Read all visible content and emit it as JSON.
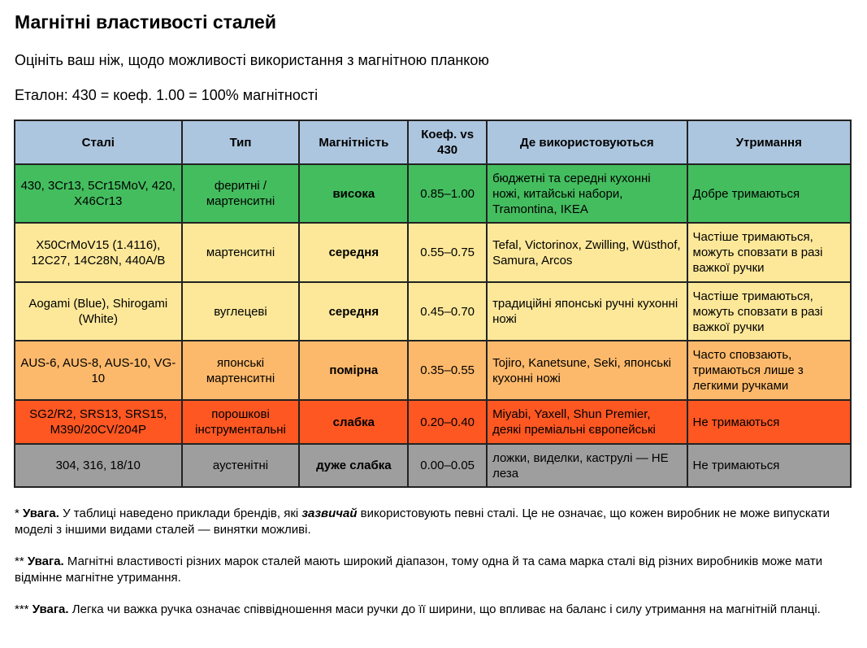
{
  "title": "Магнітні властивості сталей",
  "subtitle": "Оцініть ваш ніж, щодо можливості використання з магнітною планкою",
  "reference": "Еталон: 430 = коеф. 1.00 = 100% магнітності",
  "table": {
    "headers": [
      "Сталі",
      "Тип",
      "Магнітність",
      "Коеф. vs 430",
      "Де використовуються",
      "Утримання"
    ],
    "rows": [
      {
        "color": "#44bd5f",
        "cells": [
          "430, 3Cr13, 5Cr15MoV, 420, X46Cr13",
          "феритні / мартенситні",
          "висока",
          "0.85–1.00",
          "бюджетні та середні кухонні ножі, китайські набори, Tramontina, IKEA",
          "Добре тримаються"
        ]
      },
      {
        "color": "#fde89a",
        "cells": [
          "X50CrMoV15 (1.4116), 12C27, 14C28N, 440A/B",
          "мартенситні",
          "середня",
          "0.55–0.75",
          "Tefal, Victorinox, Zwilling, Wüsthof, Samura, Arcos",
          "Частіше тримаються, можуть сповзати в разі важкої ручки"
        ]
      },
      {
        "color": "#fde89a",
        "cells": [
          "Aogami (Blue), Shirogami (White)",
          "вуглецеві",
          "середня",
          "0.45–0.70",
          "традиційні японські ручні кухонні ножі",
          "Частіше тримаються, можуть сповзати в разі важкої ручки"
        ]
      },
      {
        "color": "#fdb96b",
        "cells": [
          "AUS-6, AUS-8, AUS-10, VG-10",
          "японські мартенситні",
          "помірна",
          "0.35–0.55",
          "Tojiro, Kanetsune, Seki, японські кухонні ножі",
          "Часто сповзають, тримаються лише з легкими ручками"
        ]
      },
      {
        "color": "#fe5722",
        "cells": [
          "SG2/R2, SRS13, SRS15, M390/20CV/204P",
          "порошкові інструментальні",
          "слабка",
          "0.20–0.40",
          "Miyabi, Yaxell, Shun Premier, деякі преміальні європейські",
          "Не тримаються"
        ]
      },
      {
        "color": "#9e9e9e",
        "cells": [
          "304, 316, 18/10",
          "аустенітні",
          "дуже слабка",
          "0.00–0.05",
          "ложки, виделки, каструлі — НЕ леза",
          "Не тримаються"
        ]
      }
    ]
  },
  "notes": [
    {
      "prefix": "* ",
      "bold": "Увага.",
      "pre": " У таблиці наведено приклади брендів, які ",
      "emph": "зазвичай",
      "post": " використовують певні сталі. Це не означає, що кожен виробник не може випускати моделі з іншими видами сталей — винятки можливі."
    },
    {
      "prefix": "** ",
      "bold": "Увага.",
      "pre": " Магнітні властивості різних марок сталей мають широкий діапазон, тому одна й та сама марка сталі від різних виробників може мати відмінне магнітне утримання.",
      "emph": "",
      "post": ""
    },
    {
      "prefix": "*** ",
      "bold": "Увага.",
      "pre": " Легка чи важка ручка означає співвідношення маси ручки до її ширини, що впливає на баланс і силу утримання на магнітній планці.",
      "emph": "",
      "post": ""
    }
  ]
}
